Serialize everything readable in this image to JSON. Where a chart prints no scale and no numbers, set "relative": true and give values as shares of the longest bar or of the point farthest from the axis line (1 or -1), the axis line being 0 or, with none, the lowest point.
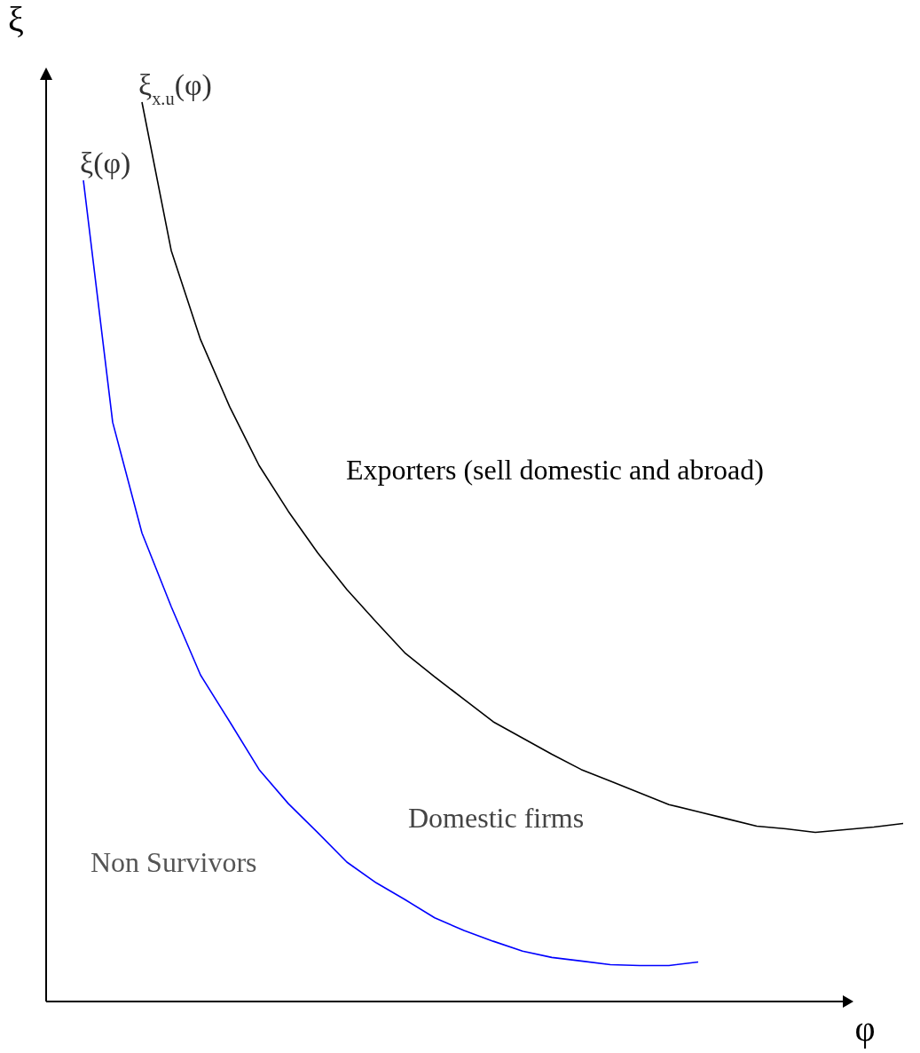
{
  "chart_data": {
    "type": "line",
    "relative": true,
    "xlabel": "φ",
    "ylabel": "ξ",
    "legend": false,
    "marker": "none",
    "line_style": "solid",
    "categories": [
      null,
      null,
      null,
      null,
      null,
      null,
      null,
      null,
      null,
      null,
      null,
      null,
      null,
      null,
      null,
      null,
      null,
      null,
      null,
      null,
      null,
      null,
      null,
      null,
      null,
      null,
      null,
      null,
      null
    ],
    "series": [
      {
        "name": "ξ$_{x.u}$(φ)",
        "color": "#000000",
        "values": [
          null,
          null,
          1.0,
          0.835,
          0.736,
          0.661,
          0.596,
          0.545,
          0.499,
          0.458,
          0.422,
          0.387,
          0.361,
          0.336,
          0.311,
          0.293,
          0.275,
          0.258,
          0.245,
          0.232,
          0.219,
          0.211,
          0.203,
          0.195,
          0.192,
          0.188,
          0.191,
          0.194,
          0.198
        ]
      },
      {
        "name": "ξ(φ)",
        "color": "#0000ff",
        "values": [
          0.913,
          0.644,
          0.521,
          0.439,
          0.363,
          0.311,
          0.258,
          0.22,
          0.188,
          0.155,
          0.132,
          0.113,
          0.093,
          0.079,
          0.067,
          0.056,
          0.049,
          0.045,
          0.041,
          0.04,
          0.04,
          0.044,
          null,
          null,
          null,
          null,
          null,
          null,
          null
        ]
      }
    ],
    "annotations": [
      "Exporters (sell domestic and abroad)",
      "Domestic firms",
      "Non Survivors"
    ]
  }
}
